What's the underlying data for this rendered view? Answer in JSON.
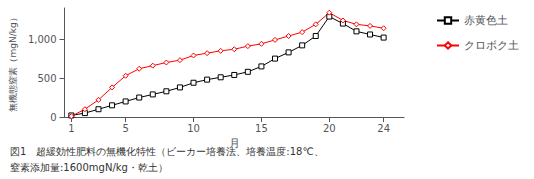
{
  "chart_data": {
    "type": "line",
    "xlabel": "月",
    "ylabel": "無機態窒素（mgN/kg）",
    "annotations": [
      "図1　超緩効性肥料の無機化特性（ビーカー培養法、培養温度:18℃、",
      "窒素添加量:1600mgN/kg・乾土）"
    ],
    "x": [
      1,
      2,
      3,
      4,
      5,
      6,
      7,
      8,
      9,
      10,
      11,
      12,
      13,
      14,
      15,
      16,
      17,
      18,
      19,
      20,
      21,
      22,
      23,
      24
    ],
    "xlim": [
      0.5,
      25.5
    ],
    "xticks": [
      1,
      5,
      10,
      15,
      20,
      24
    ],
    "ylim": [
      0,
      1400
    ],
    "yticks": [
      0,
      500,
      1000
    ],
    "grid": false,
    "legend": "right",
    "series": [
      {
        "name": "赤黄色土",
        "color": "black",
        "marker": "square",
        "values": [
          20,
          50,
          100,
          150,
          200,
          250,
          290,
          330,
          380,
          440,
          480,
          510,
          540,
          580,
          650,
          750,
          830,
          920,
          1040,
          1290,
          1200,
          1100,
          1060,
          1020
        ]
      },
      {
        "name": "クロボク土",
        "color": "red",
        "marker": "diamond",
        "values": [
          10,
          100,
          220,
          380,
          530,
          620,
          660,
          700,
          730,
          790,
          820,
          850,
          870,
          910,
          940,
          990,
          1040,
          1090,
          1190,
          1340,
          1240,
          1190,
          1170,
          1140
        ]
      }
    ]
  }
}
